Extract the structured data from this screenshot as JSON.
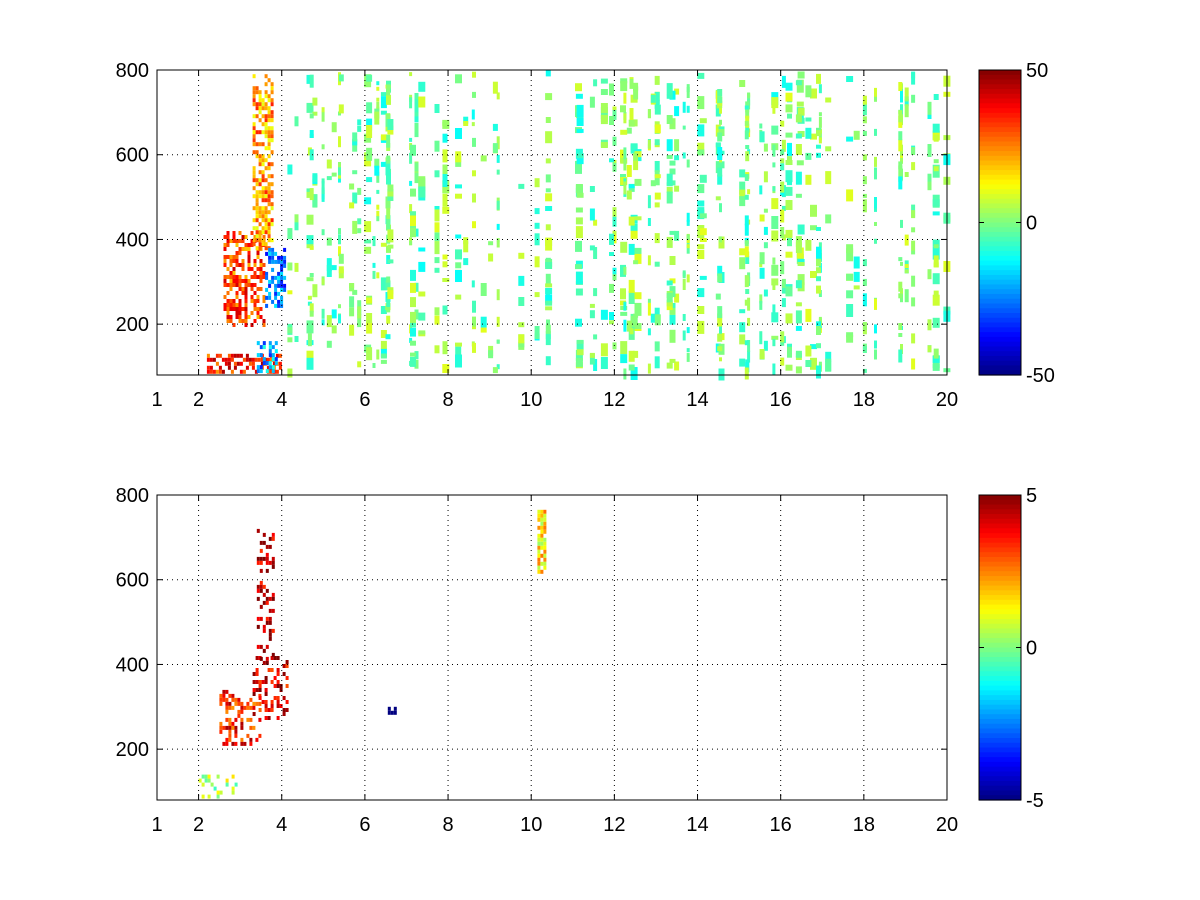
{
  "chart_data": [
    {
      "type": "heatmap",
      "title": "",
      "xlabel": "",
      "ylabel": "",
      "xlim": [
        1,
        20
      ],
      "ylim": [
        80,
        800
      ],
      "x_ticks": [
        "1",
        "2",
        "4",
        "6",
        "8",
        "10",
        "12",
        "14",
        "16",
        "18",
        "20"
      ],
      "y_ticks": [
        "200",
        "400",
        "600",
        "800"
      ],
      "grid": true,
      "colormap": "jet",
      "clim": [
        -50,
        50
      ],
      "colorbar_ticks": [
        "50",
        "0",
        "-50"
      ],
      "features": [
        {
          "kind": "band",
          "x": [
            2.2,
            4.0
          ],
          "y": [
            90,
            130
          ],
          "value": 35
        },
        {
          "kind": "band",
          "x": [
            2.6,
            3.6
          ],
          "y": [
            200,
            420
          ],
          "value": 30
        },
        {
          "kind": "band",
          "x": [
            3.3,
            3.8
          ],
          "y": [
            380,
            790
          ],
          "value": 22
        },
        {
          "kind": "band",
          "x": [
            3.6,
            4.1
          ],
          "y": [
            240,
            380
          ],
          "value": -25
        },
        {
          "kind": "band",
          "x": [
            3.4,
            3.9
          ],
          "y": [
            90,
            160
          ],
          "value": -22
        },
        {
          "kind": "scatter",
          "x": [
            4.0,
            20.0
          ],
          "y": [
            80,
            800
          ],
          "value_range": [
            -12,
            10
          ]
        }
      ]
    },
    {
      "type": "heatmap",
      "title": "",
      "xlabel": "",
      "ylabel": "",
      "xlim": [
        1,
        20
      ],
      "ylim": [
        80,
        800
      ],
      "x_ticks": [
        "1",
        "2",
        "4",
        "6",
        "8",
        "10",
        "12",
        "14",
        "16",
        "18",
        "20"
      ],
      "y_ticks": [
        "200",
        "400",
        "600",
        "800"
      ],
      "grid": true,
      "colormap": "jet",
      "clim": [
        -5,
        5
      ],
      "colorbar_ticks": [
        "5",
        "0",
        "-5"
      ],
      "features": [
        {
          "kind": "band",
          "x": [
            2.0,
            2.9
          ],
          "y": [
            85,
            140
          ],
          "value": 0.5
        },
        {
          "kind": "band",
          "x": [
            2.5,
            3.5
          ],
          "y": [
            210,
            340
          ],
          "value": 3.5
        },
        {
          "kind": "band",
          "x": [
            3.3,
            4.1
          ],
          "y": [
            270,
            420
          ],
          "value": 4
        },
        {
          "kind": "band",
          "x": [
            3.4,
            3.8
          ],
          "y": [
            400,
            720
          ],
          "value": 4.5
        },
        {
          "kind": "strip",
          "x": [
            10.15,
            10.3
          ],
          "y": [
            615,
            765
          ],
          "value": 1.5
        },
        {
          "kind": "spot",
          "x": [
            6.55,
            6.7
          ],
          "y": [
            285,
            300
          ],
          "value": -5
        }
      ]
    }
  ]
}
